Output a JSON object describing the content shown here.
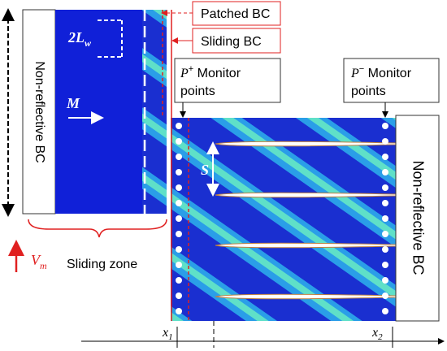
{
  "callouts": {
    "patched": "Patched BC",
    "sliding": "Sliding BC"
  },
  "boundaries": {
    "left": "Non-reflective BC",
    "right": "Non-reflective BC"
  },
  "pitch": {
    "main": "2L",
    "sub": "w"
  },
  "mach": "M",
  "spacing": "S",
  "monitors": {
    "plus": {
      "symbol": "P",
      "sup": "+",
      "line1": " Monitor",
      "line2": "points"
    },
    "minus": {
      "symbol": "P",
      "sup": "−",
      "line1": " Monitor",
      "line2": "points"
    }
  },
  "velocity": {
    "main": "V",
    "sub": "m"
  },
  "sliding_zone": "Sliding zone",
  "axis": {
    "x1": {
      "main": "x",
      "sub": "1"
    },
    "x2": {
      "main": "x",
      "sub": "2"
    }
  }
}
